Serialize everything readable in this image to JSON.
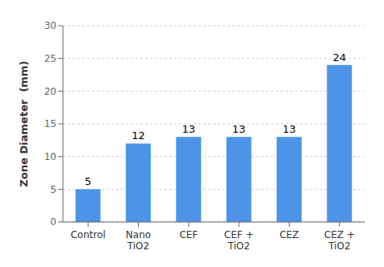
{
  "chart_data": {
    "type": "bar",
    "categories": [
      "Control",
      "Nano\nTiO2",
      "CEF",
      "CEF +\nTiO2",
      "CEZ",
      "CEZ +\nTiO2"
    ],
    "values": [
      5,
      12,
      13,
      13,
      13,
      24
    ],
    "color": "#4d94e8",
    "ylabel": "Zone Diameter  (mm)",
    "ylim": [
      0,
      30
    ],
    "yticks": [
      0,
      5,
      10,
      15,
      20,
      25,
      30
    ],
    "grid": true,
    "data_labels": true
  }
}
